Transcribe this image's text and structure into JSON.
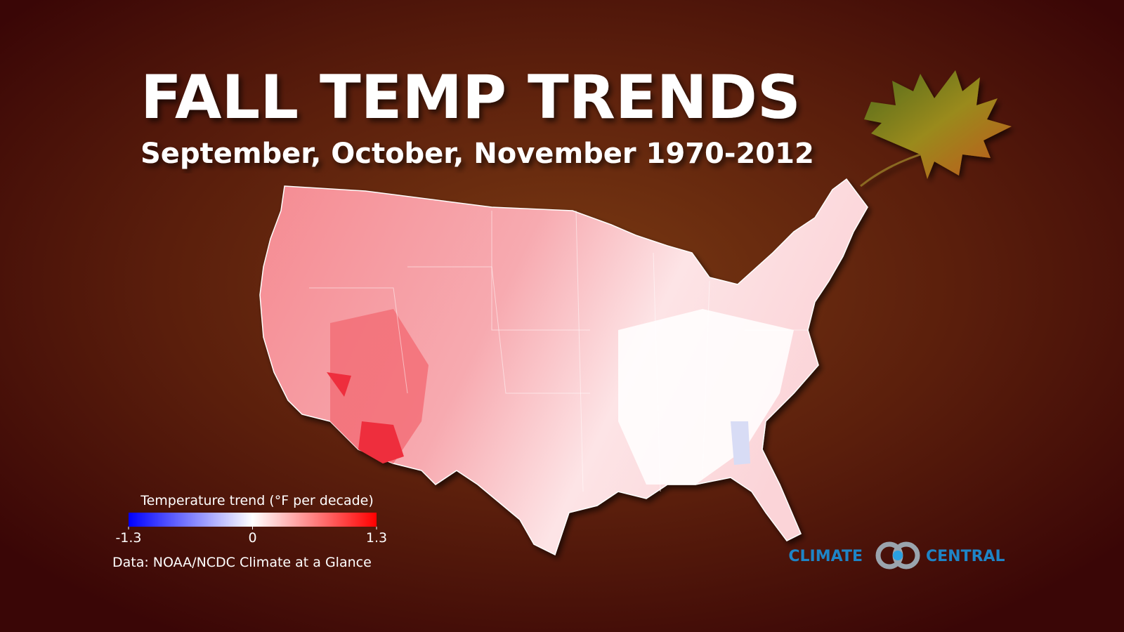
{
  "header": {
    "title": "FALL TEMP TRENDS",
    "subtitle": "September, October, November 1970-2012"
  },
  "legend": {
    "title": "Temperature trend (°F per decade)",
    "range": [
      -1.3,
      1.3
    ],
    "ticks": [
      -1.3,
      0,
      1.3
    ],
    "colors": [
      "#0000ff",
      "#ffffff",
      "#ff0000"
    ]
  },
  "source": "Data: NOAA/NCDC Climate at a Glance",
  "logo": {
    "left": "CLIMATE",
    "right": "CENTRAL"
  }
}
